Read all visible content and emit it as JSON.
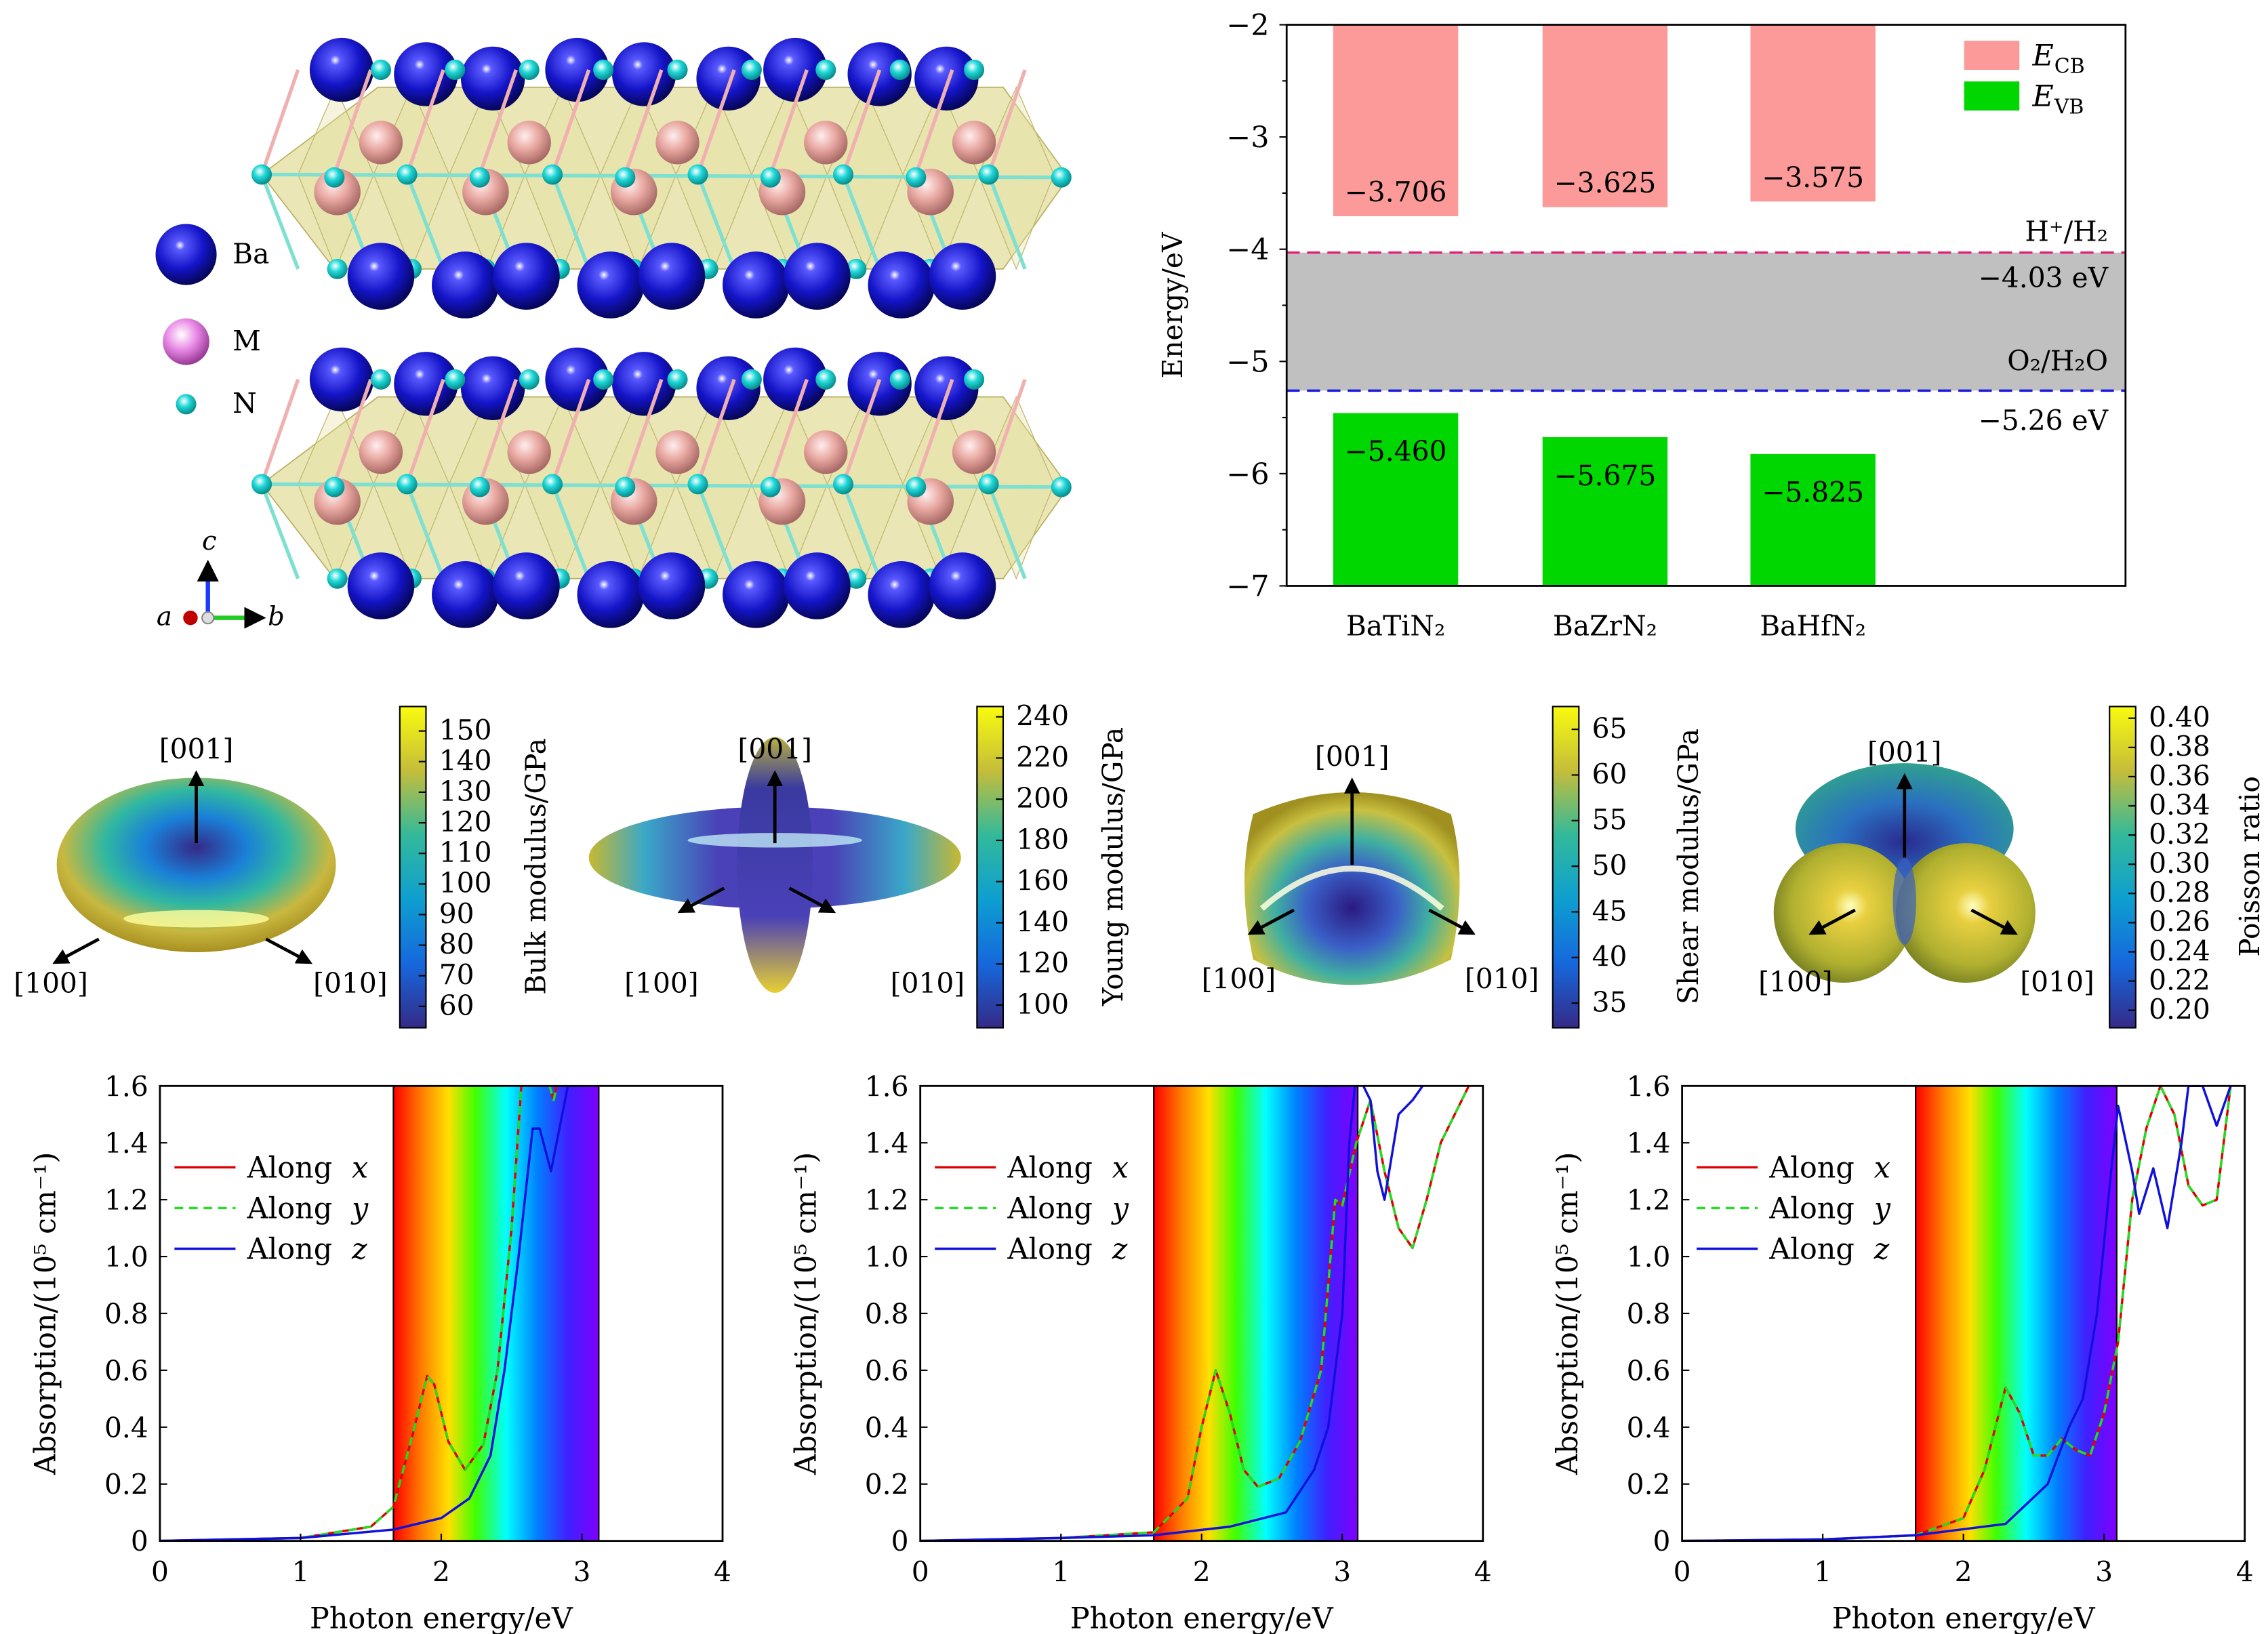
{
  "structure": {
    "legend": [
      {
        "label": "Ba",
        "color": "#1a1acc"
      },
      {
        "label": "M",
        "color": "#e98be6"
      },
      {
        "label": "N",
        "color": "#22d6d6"
      }
    ],
    "axes": {
      "a": "a",
      "b": "b",
      "c": "c"
    },
    "colors": {
      "ba": "#1414c8",
      "m": "#e8a7a0",
      "n": "#20d8d8",
      "polyhedra": "#d8d27a"
    }
  },
  "chart_data": [
    {
      "type": "bar",
      "title": "",
      "ylabel": "Energy/eV",
      "xlabel": "",
      "ylim": [
        -7,
        -2
      ],
      "yticks": [
        "−2",
        "−3",
        "−4",
        "−5",
        "−6",
        "−7"
      ],
      "categories": [
        "BaTiN₂",
        "BaZrN₂",
        "BaHfN₂"
      ],
      "series": [
        {
          "name": "E",
          "sub": "CB",
          "color": "#fb9a98",
          "values": [
            -3.706,
            -3.625,
            -3.575
          ],
          "labels": [
            "−3.706",
            "−3.625",
            "−3.575"
          ]
        },
        {
          "name": "E",
          "sub": "VB",
          "color": "#00d600",
          "values": [
            -5.46,
            -5.675,
            -5.825
          ],
          "labels": [
            "−5.460",
            "−5.675",
            "−5.825"
          ]
        }
      ],
      "reference_lines": [
        {
          "name": "H⁺/H₂",
          "value": -4.03,
          "label": "−4.03 eV",
          "color": "#e0207a"
        },
        {
          "name": "O₂/H₂O",
          "value": -5.26,
          "label": "−5.26 eV",
          "color": "#1a1ae0"
        }
      ],
      "band_fill": "#c0c0c0",
      "legend_position": "top-right"
    },
    {
      "type": "heatmap",
      "kind": "3d-surface",
      "colorbar_label": "Bulk modulus/GPa",
      "range": [
        53,
        158
      ],
      "ticks": [
        60,
        70,
        80,
        90,
        100,
        110,
        120,
        130,
        140,
        150
      ],
      "directions": [
        "[001]",
        "[100]",
        "[010]"
      ]
    },
    {
      "type": "heatmap",
      "kind": "3d-surface",
      "colorbar_label": "Young modulus/GPa",
      "range": [
        89,
        245
      ],
      "ticks": [
        100,
        120,
        140,
        160,
        180,
        200,
        220,
        240
      ],
      "directions": [
        "[001]",
        "[100]",
        "[010]"
      ]
    },
    {
      "type": "heatmap",
      "kind": "3d-surface",
      "colorbar_label": "Shear modulus/GPa",
      "range": [
        32.3,
        67.5
      ],
      "ticks": [
        35,
        40,
        45,
        50,
        55,
        60,
        65
      ],
      "directions": [
        "[001]",
        "[100]",
        "[010]"
      ]
    },
    {
      "type": "heatmap",
      "kind": "3d-surface",
      "colorbar_label": "Poisson ratio",
      "range": [
        0.188,
        0.408
      ],
      "ticks": [
        "0.20",
        "0.22",
        "0.24",
        "0.26",
        "0.28",
        "0.30",
        "0.32",
        "0.34",
        "0.36",
        "0.38",
        "0.40"
      ],
      "directions": [
        "[001]",
        "[100]",
        "[010]"
      ]
    },
    {
      "type": "line",
      "xlabel": "Photon energy/eV",
      "ylabel": "Absorption/(10⁵ cm⁻¹)",
      "xlim": [
        0,
        4
      ],
      "ylim": [
        0,
        1.6
      ],
      "xticks": [
        "0",
        "1",
        "2",
        "3",
        "4"
      ],
      "yticks": [
        "0",
        "0.2",
        "0.4",
        "0.6",
        "0.8",
        "1.0",
        "1.2",
        "1.4",
        "1.6"
      ],
      "visible_range": [
        1.66,
        3.12
      ],
      "legend_position": "top-left",
      "series": [
        {
          "prefix": "Along",
          "axis": "x",
          "color": "#e00000",
          "dash": false,
          "x": [
            0,
            1,
            1.5,
            1.66,
            1.8,
            1.9,
            1.95,
            2.05,
            2.17,
            2.3,
            2.4,
            2.5,
            2.57,
            2.65,
            2.8,
            2.86
          ],
          "y": [
            0,
            0.01,
            0.05,
            0.12,
            0.38,
            0.58,
            0.55,
            0.35,
            0.25,
            0.34,
            0.6,
            1.1,
            1.6,
            1.8,
            1.55,
            1.7
          ]
        },
        {
          "prefix": "Along",
          "axis": "y",
          "color": "#22dd22",
          "dash": true,
          "x": [
            0,
            1,
            1.5,
            1.66,
            1.8,
            1.9,
            1.95,
            2.05,
            2.17,
            2.3,
            2.4,
            2.5,
            2.57,
            2.65,
            2.8,
            2.86
          ],
          "y": [
            0,
            0.01,
            0.05,
            0.12,
            0.38,
            0.58,
            0.55,
            0.35,
            0.25,
            0.34,
            0.6,
            1.1,
            1.6,
            1.8,
            1.55,
            1.7
          ]
        },
        {
          "prefix": "Along",
          "axis": "z",
          "color": "#1010dd",
          "dash": false,
          "x": [
            0,
            1,
            1.66,
            2.0,
            2.2,
            2.35,
            2.45,
            2.55,
            2.65,
            2.7,
            2.78,
            2.9,
            3.0
          ],
          "y": [
            0,
            0.01,
            0.04,
            0.08,
            0.15,
            0.3,
            0.6,
            1.0,
            1.45,
            1.45,
            1.3,
            1.6,
            1.8
          ]
        }
      ]
    },
    {
      "type": "line",
      "xlabel": "Photon energy/eV",
      "ylabel": "Absorption/(10⁵ cm⁻¹)",
      "xlim": [
        0,
        4
      ],
      "ylim": [
        0,
        1.6
      ],
      "xticks": [
        "0",
        "1",
        "2",
        "3",
        "4"
      ],
      "yticks": [
        "0",
        "0.2",
        "0.4",
        "0.6",
        "0.8",
        "1.0",
        "1.2",
        "1.4",
        "1.6"
      ],
      "visible_range": [
        1.66,
        3.11
      ],
      "legend_position": "top-left",
      "series": [
        {
          "prefix": "Along",
          "axis": "x",
          "color": "#e00000",
          "dash": false,
          "x": [
            0,
            1,
            1.66,
            1.9,
            2.0,
            2.1,
            2.2,
            2.3,
            2.4,
            2.55,
            2.7,
            2.85,
            2.9,
            2.95,
            3.0,
            3.1,
            3.2,
            3.3,
            3.4,
            3.5,
            3.6,
            3.7,
            3.8,
            3.9
          ],
          "y": [
            0,
            0.01,
            0.03,
            0.15,
            0.4,
            0.6,
            0.45,
            0.25,
            0.19,
            0.22,
            0.35,
            0.6,
            0.9,
            1.2,
            1.18,
            1.4,
            1.55,
            1.3,
            1.1,
            1.03,
            1.2,
            1.4,
            1.5,
            1.6
          ]
        },
        {
          "prefix": "Along",
          "axis": "y",
          "color": "#22dd22",
          "dash": true,
          "x": [
            0,
            1,
            1.66,
            1.9,
            2.0,
            2.1,
            2.2,
            2.3,
            2.4,
            2.55,
            2.7,
            2.85,
            2.9,
            2.95,
            3.0,
            3.1,
            3.2,
            3.3,
            3.4,
            3.5,
            3.6,
            3.7,
            3.8,
            3.9
          ],
          "y": [
            0,
            0.01,
            0.03,
            0.15,
            0.4,
            0.6,
            0.45,
            0.25,
            0.19,
            0.22,
            0.35,
            0.6,
            0.9,
            1.2,
            1.18,
            1.4,
            1.55,
            1.3,
            1.1,
            1.03,
            1.2,
            1.4,
            1.5,
            1.6
          ]
        },
        {
          "prefix": "Along",
          "axis": "z",
          "color": "#1010dd",
          "dash": false,
          "x": [
            0,
            1,
            1.66,
            2.2,
            2.6,
            2.8,
            2.9,
            3.0,
            3.05,
            3.1,
            3.2,
            3.25,
            3.3,
            3.4,
            3.5,
            3.6
          ],
          "y": [
            0,
            0.01,
            0.02,
            0.05,
            0.1,
            0.25,
            0.4,
            0.8,
            1.4,
            1.65,
            1.55,
            1.3,
            1.2,
            1.5,
            1.55,
            1.62
          ]
        }
      ]
    },
    {
      "type": "line",
      "xlabel": "Photon energy/eV",
      "ylabel": "Absorption/(10⁵ cm⁻¹)",
      "xlim": [
        0,
        4
      ],
      "ylim": [
        0,
        1.6
      ],
      "xticks": [
        "0",
        "1",
        "2",
        "3",
        "4"
      ],
      "yticks": [
        "0",
        "0.2",
        "0.4",
        "0.6",
        "0.8",
        "1.0",
        "1.2",
        "1.4",
        "1.6"
      ],
      "visible_range": [
        1.66,
        3.09
      ],
      "legend_position": "top-left",
      "series": [
        {
          "prefix": "Along",
          "axis": "x",
          "color": "#e00000",
          "dash": false,
          "x": [
            0,
            1,
            1.66,
            2.0,
            2.15,
            2.3,
            2.4,
            2.5,
            2.6,
            2.7,
            2.8,
            2.9,
            3.0,
            3.1,
            3.2,
            3.3,
            3.4,
            3.5,
            3.6,
            3.7,
            3.8,
            3.9
          ],
          "y": [
            0,
            0.005,
            0.02,
            0.08,
            0.25,
            0.54,
            0.45,
            0.3,
            0.3,
            0.36,
            0.32,
            0.3,
            0.45,
            0.7,
            1.2,
            1.45,
            1.6,
            1.5,
            1.25,
            1.18,
            1.2,
            1.6
          ]
        },
        {
          "prefix": "Along",
          "axis": "y",
          "color": "#22dd22",
          "dash": true,
          "x": [
            0,
            1,
            1.66,
            2.0,
            2.15,
            2.3,
            2.4,
            2.5,
            2.6,
            2.7,
            2.8,
            2.9,
            3.0,
            3.1,
            3.2,
            3.3,
            3.4,
            3.5,
            3.6,
            3.7,
            3.8,
            3.9
          ],
          "y": [
            0,
            0.005,
            0.02,
            0.08,
            0.25,
            0.54,
            0.45,
            0.3,
            0.3,
            0.36,
            0.32,
            0.3,
            0.45,
            0.7,
            1.2,
            1.45,
            1.6,
            1.5,
            1.25,
            1.18,
            1.2,
            1.6
          ]
        },
        {
          "prefix": "Along",
          "axis": "z",
          "color": "#1010dd",
          "dash": false,
          "x": [
            0,
            1,
            1.66,
            2.3,
            2.6,
            2.75,
            2.85,
            2.95,
            3.05,
            3.1,
            3.2,
            3.25,
            3.35,
            3.45,
            3.55,
            3.6,
            3.7,
            3.8,
            3.9
          ],
          "y": [
            0,
            0.005,
            0.02,
            0.06,
            0.2,
            0.4,
            0.5,
            0.8,
            1.3,
            1.53,
            1.3,
            1.15,
            1.31,
            1.1,
            1.4,
            1.6,
            1.6,
            1.46,
            1.6
          ]
        }
      ]
    }
  ]
}
